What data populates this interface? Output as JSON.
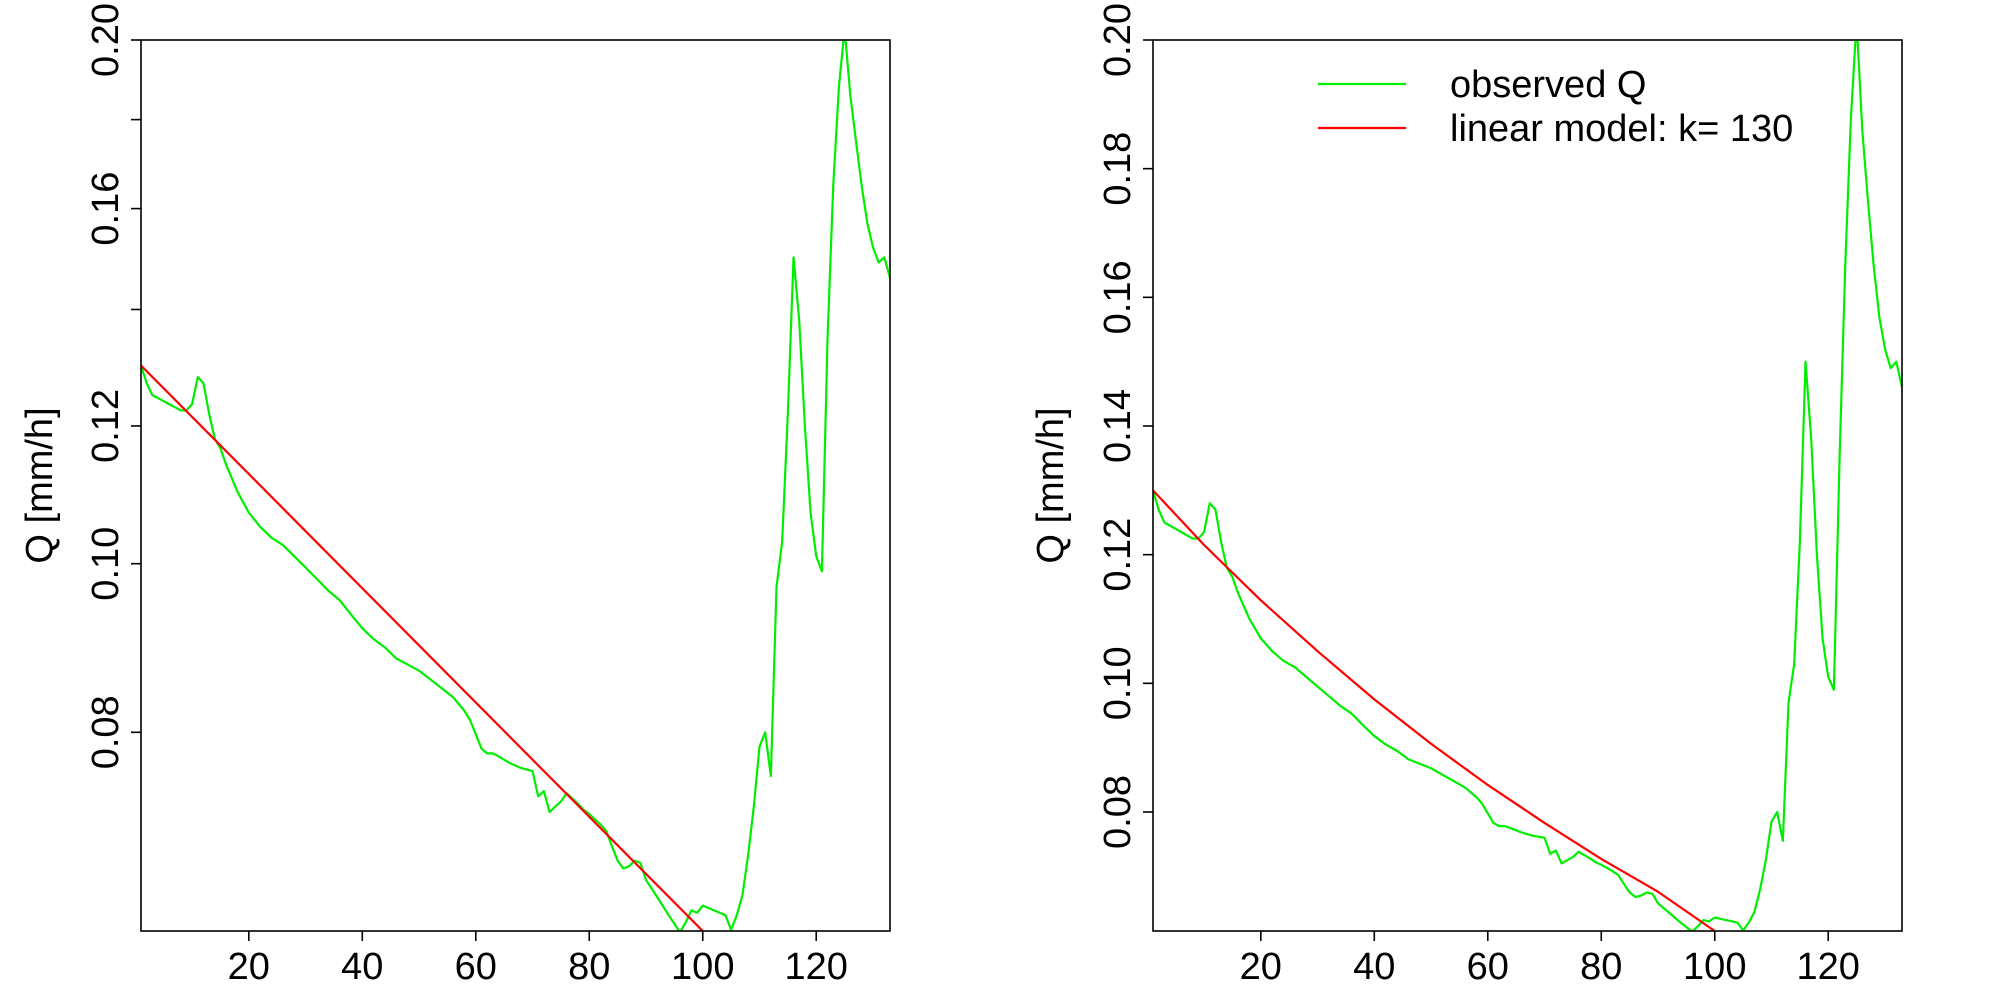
{
  "chart_data": [
    {
      "type": "line",
      "title": "",
      "xlabel": "",
      "ylabel": "Q [mm/h]",
      "log_y": true,
      "xlim": [
        1,
        133
      ],
      "ylim": [
        0.0615,
        0.2
      ],
      "x_ticks": [
        20,
        40,
        60,
        80,
        100,
        120
      ],
      "x_tick_labels": [
        "20",
        "40",
        "60",
        "80",
        "100",
        "120"
      ],
      "y_ticks": [
        0.08,
        0.1,
        0.12,
        0.16,
        0.2
      ],
      "y_tick_labels": [
        "0.08",
        "0.10",
        "0.12",
        "0.16",
        "0.20"
      ],
      "y_minor_ticks": [
        0.14,
        0.18
      ],
      "grid": false,
      "legend": null,
      "series": [
        {
          "color": "#00ee00",
          "x": [
            1,
            2,
            3,
            4,
            5,
            6,
            7,
            8,
            9,
            10,
            11,
            12,
            13,
            14,
            15,
            16,
            18,
            20,
            22,
            24,
            26,
            28,
            30,
            32,
            34,
            36,
            38,
            40,
            42,
            44,
            46,
            48,
            50,
            52,
            54,
            56,
            58,
            59,
            60,
            61,
            62,
            63,
            64,
            66,
            68,
            70,
            71,
            72,
            73,
            74,
            75,
            76,
            77,
            78,
            79,
            80,
            81,
            82,
            83,
            84,
            85,
            86,
            87,
            88,
            89,
            90,
            92,
            94,
            96,
            97,
            98,
            99,
            100,
            101,
            102,
            103,
            104,
            105,
            106,
            107,
            108,
            109,
            110,
            111,
            112,
            113,
            114,
            115,
            116,
            117,
            118,
            119,
            120,
            121,
            122,
            123,
            124,
            125,
            126,
            127,
            128,
            129,
            130,
            131,
            132,
            133
          ],
          "values": [
            0.13,
            0.127,
            0.125,
            0.1245,
            0.124,
            0.1235,
            0.123,
            0.1225,
            0.1225,
            0.1235,
            0.128,
            0.127,
            0.122,
            0.118,
            0.1165,
            0.114,
            0.11,
            0.107,
            0.105,
            0.1035,
            0.1025,
            0.101,
            0.0995,
            0.098,
            0.0965,
            0.0953,
            0.0935,
            0.0918,
            0.0905,
            0.0895,
            0.0882,
            0.0875,
            0.0868,
            0.0858,
            0.0848,
            0.0838,
            0.0823,
            0.0813,
            0.0798,
            0.0783,
            0.0778,
            0.0778,
            0.0775,
            0.0768,
            0.0763,
            0.076,
            0.0735,
            0.074,
            0.072,
            0.0725,
            0.073,
            0.0738,
            0.0733,
            0.0728,
            0.0722,
            0.0718,
            0.0713,
            0.0708,
            0.0702,
            0.0688,
            0.0675,
            0.0668,
            0.067,
            0.0675,
            0.0673,
            0.0658,
            0.0643,
            0.0628,
            0.0614,
            0.0622,
            0.0632,
            0.063,
            0.0636,
            0.0634,
            0.0632,
            0.063,
            0.0628,
            0.0616,
            0.0628,
            0.0645,
            0.068,
            0.0725,
            0.0785,
            0.08,
            0.0755,
            0.097,
            0.103,
            0.122,
            0.15,
            0.138,
            0.12,
            0.107,
            0.101,
            0.099,
            0.135,
            0.165,
            0.188,
            0.203,
            0.186,
            0.175,
            0.165,
            0.157,
            0.152,
            0.149,
            0.15,
            0.146
          ]
        },
        {
          "color": "#ff0000",
          "x": [
            1,
            100
          ],
          "values": [
            0.13,
            0.0615
          ]
        }
      ]
    },
    {
      "type": "line",
      "title": "",
      "xlabel": "",
      "ylabel": "Q [mm/h]",
      "log_y": false,
      "xlim": [
        1,
        133
      ],
      "ylim": [
        0.0615,
        0.2
      ],
      "x_ticks": [
        20,
        40,
        60,
        80,
        100,
        120
      ],
      "x_tick_labels": [
        "20",
        "40",
        "60",
        "80",
        "100",
        "120"
      ],
      "y_ticks": [
        0.08,
        0.1,
        0.12,
        0.14,
        0.16,
        0.18,
        0.2
      ],
      "y_tick_labels": [
        "0.08",
        "0.10",
        "0.12",
        "0.14",
        "0.16",
        "0.18",
        "0.20"
      ],
      "grid": false,
      "legend": {
        "position": "top-right",
        "entries": [
          {
            "label": "observed Q",
            "color": "#00ee00"
          },
          {
            "label": "linear model: k= 130",
            "color": "#ff0000"
          }
        ]
      },
      "series": [
        {
          "name": "observed Q",
          "color": "#00ee00",
          "x": [
            1,
            2,
            3,
            4,
            5,
            6,
            7,
            8,
            9,
            10,
            11,
            12,
            13,
            14,
            15,
            16,
            18,
            20,
            22,
            24,
            26,
            28,
            30,
            32,
            34,
            36,
            38,
            40,
            42,
            44,
            46,
            48,
            50,
            52,
            54,
            56,
            58,
            59,
            60,
            61,
            62,
            63,
            64,
            66,
            68,
            70,
            71,
            72,
            73,
            74,
            75,
            76,
            77,
            78,
            79,
            80,
            81,
            82,
            83,
            84,
            85,
            86,
            87,
            88,
            89,
            90,
            92,
            94,
            96,
            97,
            98,
            99,
            100,
            101,
            102,
            103,
            104,
            105,
            106,
            107,
            108,
            109,
            110,
            111,
            112,
            113,
            114,
            115,
            116,
            117,
            118,
            119,
            120,
            121,
            122,
            123,
            124,
            125,
            126,
            127,
            128,
            129,
            130,
            131,
            132,
            133
          ],
          "values": [
            0.13,
            0.127,
            0.125,
            0.1245,
            0.124,
            0.1235,
            0.123,
            0.1225,
            0.1225,
            0.1235,
            0.128,
            0.127,
            0.122,
            0.118,
            0.1165,
            0.114,
            0.11,
            0.107,
            0.105,
            0.1035,
            0.1025,
            0.101,
            0.0995,
            0.098,
            0.0965,
            0.0953,
            0.0935,
            0.0918,
            0.0905,
            0.0895,
            0.0882,
            0.0875,
            0.0868,
            0.0858,
            0.0848,
            0.0838,
            0.0823,
            0.0813,
            0.0798,
            0.0783,
            0.0778,
            0.0778,
            0.0775,
            0.0768,
            0.0763,
            0.076,
            0.0735,
            0.074,
            0.072,
            0.0725,
            0.073,
            0.0738,
            0.0733,
            0.0728,
            0.0722,
            0.0718,
            0.0713,
            0.0708,
            0.0702,
            0.0688,
            0.0675,
            0.0668,
            0.067,
            0.0675,
            0.0673,
            0.0658,
            0.0643,
            0.0628,
            0.0614,
            0.0622,
            0.0632,
            0.063,
            0.0636,
            0.0634,
            0.0632,
            0.063,
            0.0628,
            0.0616,
            0.0628,
            0.0645,
            0.068,
            0.0725,
            0.0785,
            0.08,
            0.0755,
            0.097,
            0.103,
            0.122,
            0.15,
            0.138,
            0.12,
            0.107,
            0.101,
            0.099,
            0.135,
            0.165,
            0.188,
            0.203,
            0.186,
            0.175,
            0.165,
            0.157,
            0.152,
            0.149,
            0.15,
            0.146
          ]
        },
        {
          "name": "linear model: k= 130",
          "color": "#ff0000",
          "x": [
            1,
            10,
            20,
            30,
            40,
            50,
            60,
            70,
            80,
            90,
            100
          ],
          "values": [
            0.13,
            0.1215,
            0.1129,
            0.105,
            0.0975,
            0.0906,
            0.0842,
            0.0783,
            0.0727,
            0.0676,
            0.0615
          ]
        }
      ]
    }
  ]
}
